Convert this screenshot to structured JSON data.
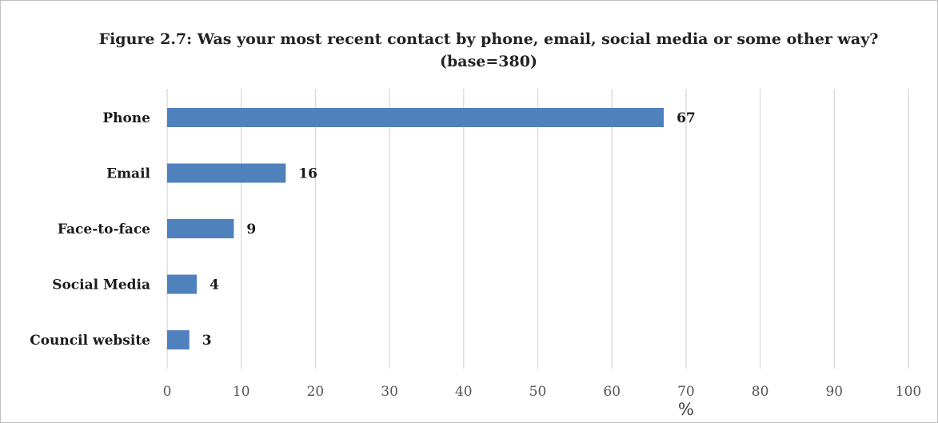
{
  "chart_data": {
    "type": "bar",
    "orientation": "horizontal",
    "title": "Figure 2.7: Was your most recent contact by phone, email, social media or some other way?  (base=380)",
    "categories": [
      "Phone",
      "Email",
      "Face-to-face",
      "Social Media",
      "Council website"
    ],
    "values": [
      67,
      16,
      9,
      4,
      3
    ],
    "xlabel": "%",
    "ylabel": "",
    "xlim": [
      0,
      100
    ],
    "xticks": [
      0,
      10,
      20,
      30,
      40,
      50,
      60,
      70,
      80,
      90,
      100
    ],
    "grid": "vertical",
    "legend": "none",
    "bar_color": "#4f81bd",
    "grid_color": "#d9d9d9"
  }
}
